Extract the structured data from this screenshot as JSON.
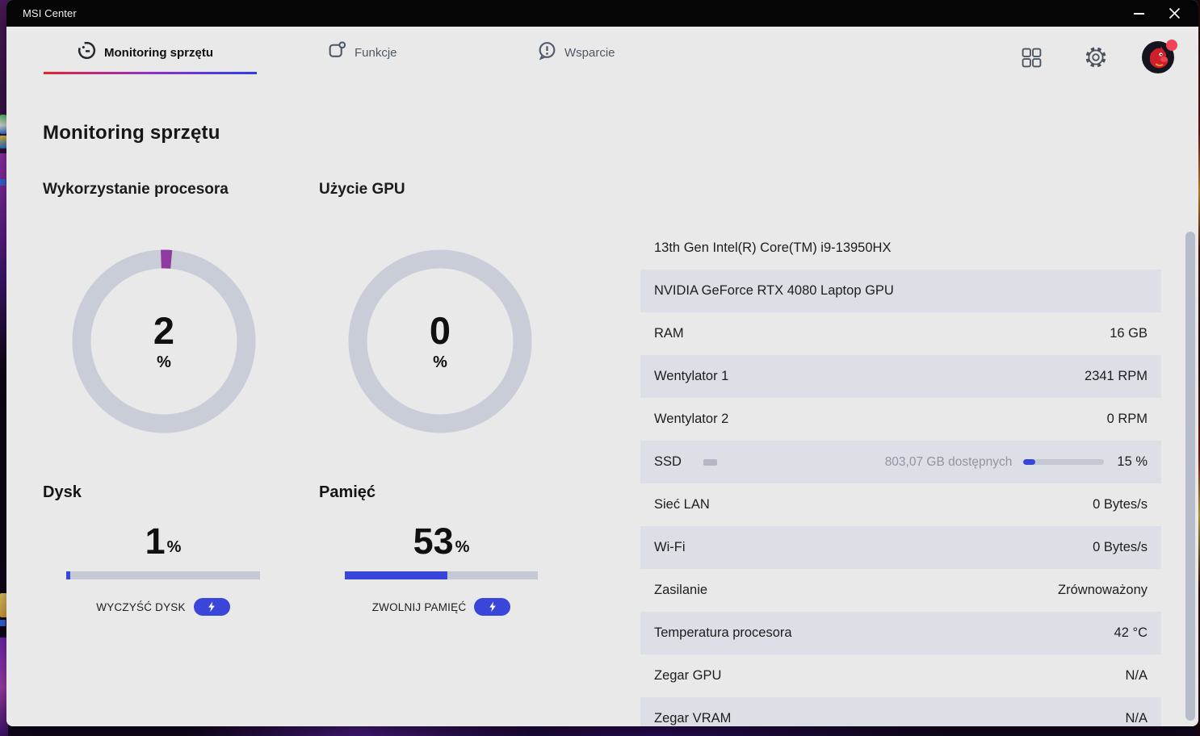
{
  "titlebar": {
    "title": "MSI Center"
  },
  "nav": {
    "tabs": [
      {
        "label": "Monitoring sprzętu",
        "active": true
      },
      {
        "label": "Funkcje",
        "active": false
      },
      {
        "label": "Wsparcie",
        "active": false
      }
    ]
  },
  "page": {
    "title": "Monitoring sprzętu"
  },
  "gauges": [
    {
      "label": "Wykorzystanie procesora",
      "value": "2",
      "unit": "%",
      "percent": 2
    },
    {
      "label": "Użycie GPU",
      "value": "0",
      "unit": "%",
      "percent": 0
    }
  ],
  "meters": [
    {
      "label": "Dysk",
      "value": "1",
      "unit": "%",
      "percent": 1,
      "action": "WYCZYŚĆ DYSK"
    },
    {
      "label": "Pamięć",
      "value": "53",
      "unit": "%",
      "percent": 53,
      "action": "ZWOLNIJ PAMIĘĆ"
    }
  ],
  "info": {
    "rows": [
      {
        "label": "13th Gen Intel(R) Core(TM) i9-13950HX",
        "value": ""
      },
      {
        "label": "NVIDIA GeForce RTX 4080 Laptop GPU",
        "value": ""
      },
      {
        "label": "RAM",
        "value": "16 GB"
      },
      {
        "label": "Wentylator 1",
        "value": "2341 RPM"
      },
      {
        "label": "Wentylator 2",
        "value": "0 RPM"
      },
      {
        "label": "SSD",
        "available": "803,07 GB dostępnych",
        "value": "15 %",
        "percent": 15
      },
      {
        "label": "Sieć LAN",
        "value": "0 Bytes/s"
      },
      {
        "label": "Wi-Fi",
        "value": "0 Bytes/s"
      },
      {
        "label": "Zasilanie",
        "value": "Zrównoważony"
      },
      {
        "label": "Temperatura procesora",
        "value": "42 °C"
      },
      {
        "label": "Zegar GPU",
        "value": "N/A"
      },
      {
        "label": "Zegar VRAM",
        "value": "N/A"
      }
    ]
  },
  "colors": {
    "accent_blue": "#3a46d9",
    "gauge_purple": "#8e3a9f",
    "ring_gray": "#c9cdd8",
    "row_alt_bg": "#dcdfe6",
    "underline_gradient": [
      "#e8232e",
      "#8b2fd0",
      "#2b3ee8"
    ],
    "notification_red": "#ef4456"
  }
}
